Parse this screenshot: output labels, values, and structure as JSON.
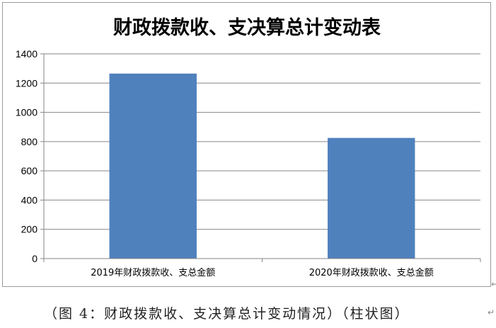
{
  "chart_data": {
    "type": "bar",
    "title": "财政拨款收、支决算总计变动表",
    "categories": [
      "2019年财政拨款收、支总金额",
      "2020年财政拨款收、支总金额"
    ],
    "values": [
      1265,
      825
    ],
    "ylim": [
      0,
      1400
    ],
    "yticks": [
      0,
      200,
      400,
      600,
      800,
      1000,
      1200,
      1400
    ],
    "grid": true,
    "bar_color": "#4f81bd",
    "grid_color": "#868686"
  },
  "caption": "（图 4：财政拨款收、支决算总计变动情况）（柱状图）",
  "return_mark": "↵"
}
